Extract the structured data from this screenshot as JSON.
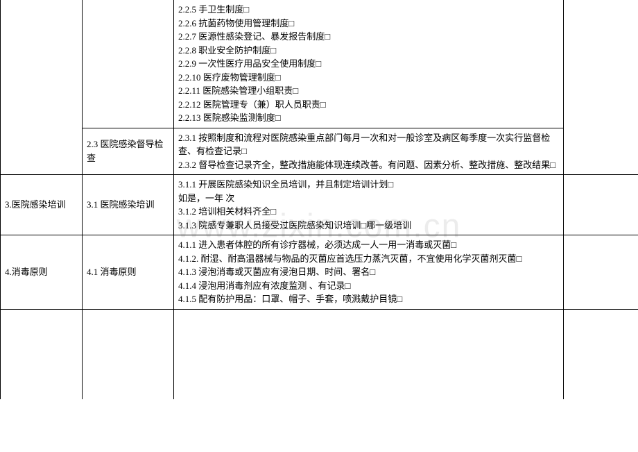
{
  "watermark": "www.zixin.com.cn",
  "rows": [
    {
      "col1": "",
      "col2": "",
      "col3_lines": [
        "2.2.5 手卫生制度□",
        "2.2.6 抗菌药物使用管理制度□",
        "2.2.7 医源性感染登记、暴发报告制度□",
        "2.2.8 职业安全防护制度□",
        "2.2.9 一次性医疗用品安全使用制度□",
        "2.2.10 医疗废物管理制度□",
        "2.2.11 医院感染管理小组职责□",
        "2.2.12 医院管理专（兼）职人员职责□",
        "2.2.13 医院感染监测制度□"
      ],
      "col4": ""
    },
    {
      "col1": "",
      "col2": "2.3 医院感染督导检查",
      "col3_lines": [
        "2.3.1 按照制度和流程对医院感染重点部门每月一次和对一般诊室及病区每季度一次实行监督检查、有检查记录□",
        "2.3.2 督导检查记录齐全，整改措施能体现连续改善。有问题、因素分析、整改措施、整改结果□"
      ],
      "col4": ""
    },
    {
      "col1": "3.医院感染培训",
      "col2": "3.1 医院感染培训",
      "col3_lines": [
        "3.1.1 开展医院感染知识全员培训，并且制定培训计划□",
        "如是，一年  次",
        "3.1.2 培训相关材料齐全□",
        "3.1.3  院感专兼职人员接受过医院感染知识培训□哪一级培训"
      ],
      "col4": ""
    },
    {
      "col1": "4.消毒原则",
      "col2": "4.1 消毒原则",
      "col3_lines": [
        "",
        "4.1.1  进入患者体腔的所有诊疗器械，必须达成一人一用一消毒或灭菌□",
        "4.1.2. 耐湿、耐高温器械与物品的灭菌应首选压力蒸汽灭菌，不宜使用化学灭菌剂灭菌□",
        "4.1.3 浸泡消毒或灭菌应有浸泡日期、时间、署名□",
        "4.1.4 浸泡用消毒剂应有浓度监测 、有记录□",
        "4.1.5 配有防护用品：口罩、帽子、手套，喷溅戴护目镜□"
      ],
      "col4": ""
    }
  ]
}
